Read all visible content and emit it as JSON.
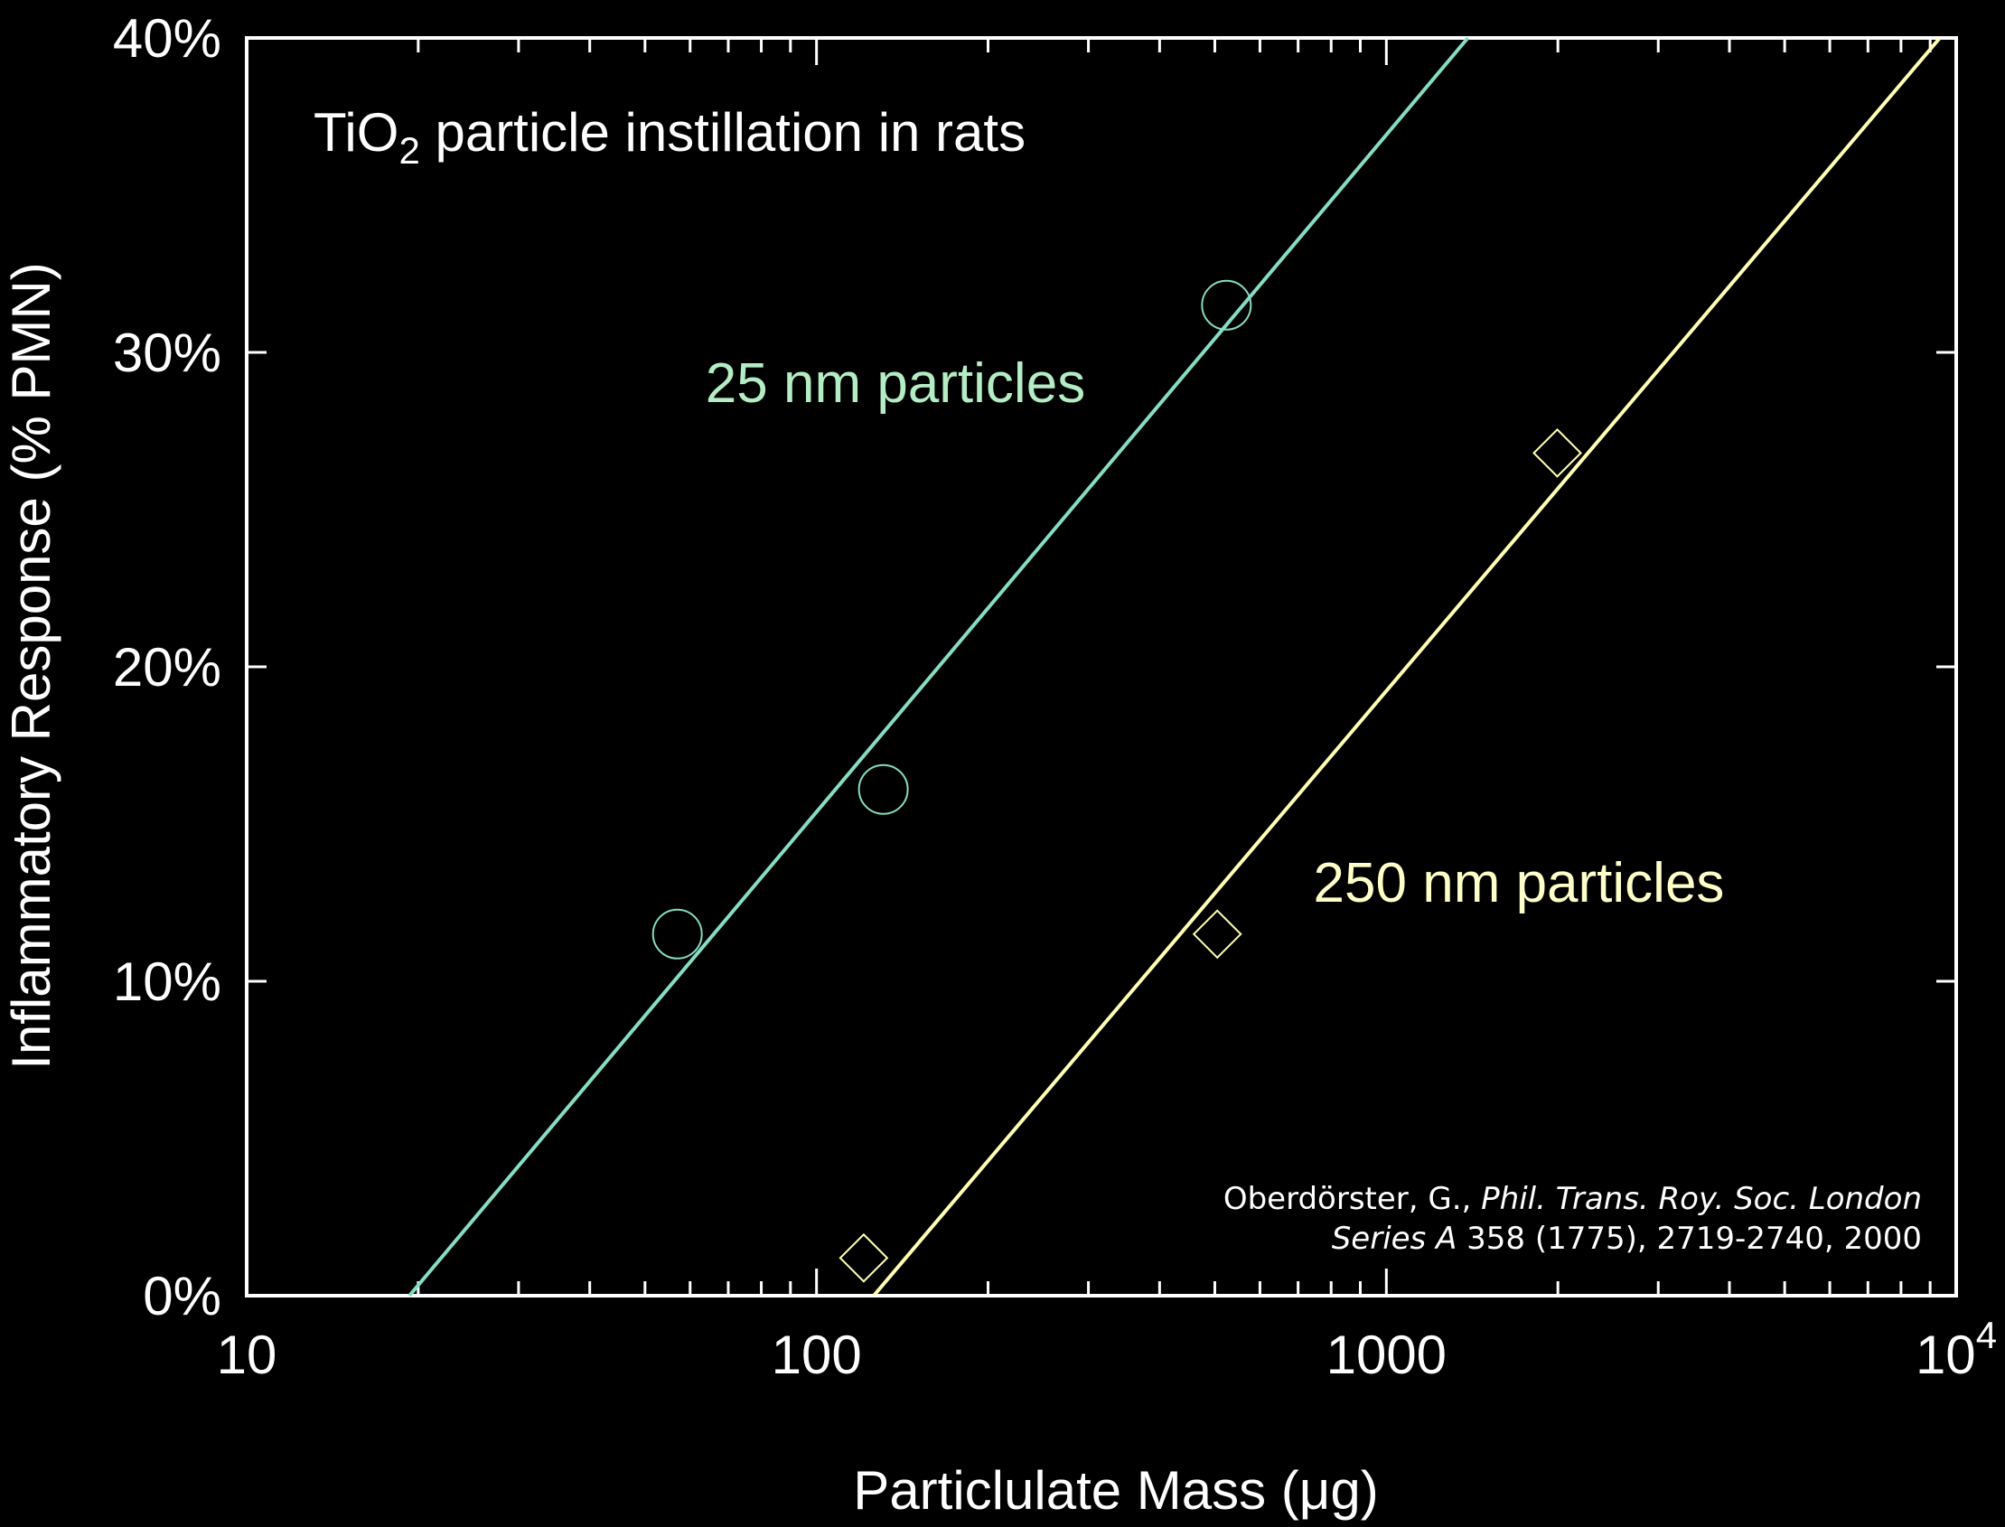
{
  "chart_data": {
    "type": "scatter",
    "annotation": [
      "TiO",
      "2",
      " particle instillation in rats"
    ],
    "citation": [
      [
        "Oberdörster, G., ",
        "Phil. Trans. Roy. Soc. London"
      ],
      [
        "Series A",
        " 358 (1775), 2719-2740, 2000"
      ]
    ],
    "x_label": "Particlulate Mass (μg)",
    "y_label": "Inflammatory Response (% PMN)",
    "xlog": true,
    "xlim": [
      10,
      10000
    ],
    "ylim": [
      0,
      40
    ],
    "xticks": [
      10,
      100,
      {
        "value": 1000,
        "label": "1000"
      },
      {
        "value": 10000,
        "label": "10",
        "sup": "4"
      }
    ],
    "yticks": [
      {
        "value": 0,
        "label": "0%"
      },
      {
        "value": 10,
        "label": "10%"
      },
      {
        "value": 20,
        "label": "20%"
      },
      {
        "value": 30,
        "label": "30%"
      },
      {
        "value": 40,
        "label": "40%"
      }
    ],
    "series": [
      {
        "name": "25 nm particles",
        "color": "#86dcc4",
        "label_color": "#b4ecc4",
        "marker": "circle",
        "x": [
          57,
          131,
          524
        ],
        "values": [
          11.5,
          16.1,
          31.5
        ],
        "fit": {
          "x": [
            19.3,
            1390
          ],
          "values": [
            0,
            40
          ]
        }
      },
      {
        "name": "250 nm particles",
        "color": "#ffffb4",
        "label_color": "#ffffc8",
        "marker": "diamond",
        "x": [
          121,
          505,
          1995
        ],
        "values": [
          1.2,
          11.5,
          26.8
        ],
        "fit": {
          "x": [
            126,
            9360
          ],
          "values": [
            0,
            40
          ]
        }
      }
    ]
  }
}
